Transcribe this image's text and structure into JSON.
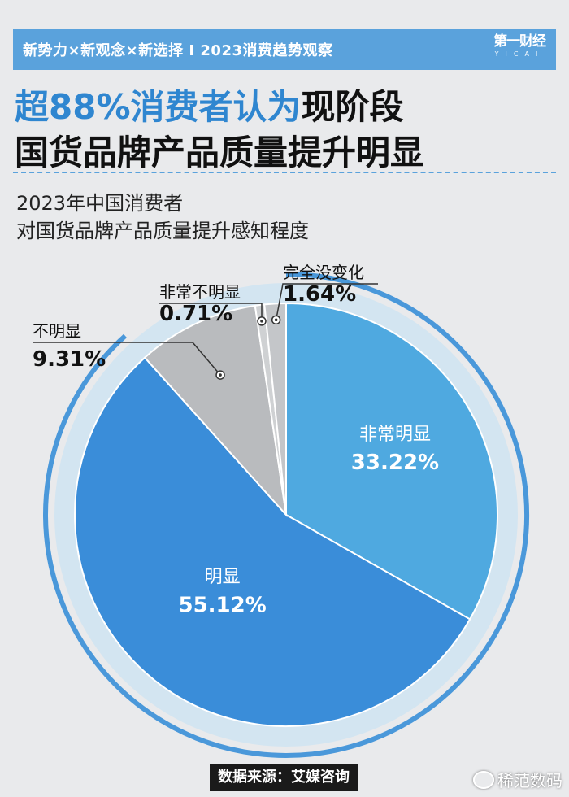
{
  "header": {
    "banner_text": "新势力×新观念×新选择 I 2023消费趋势观察",
    "brand_main": "第一财经",
    "brand_sub": "YICAI",
    "accent_color": "#5aa2dc"
  },
  "headline": {
    "accent": "超88%消费者认为",
    "line1_rest": "现阶段",
    "line2": "国货品牌产品质量提升明显"
  },
  "subtitle": {
    "line1": "2023年中国消费者",
    "line2": "对国货品牌产品质量提升感知程度"
  },
  "chart_data": {
    "type": "pie",
    "title": "2023年中国消费者对国货品牌产品质量提升感知程度",
    "unit": "%",
    "slices": [
      {
        "label": "非常明显",
        "value": 33.22,
        "value_text": "33.22%",
        "color": "#4fa9e0",
        "label_placement": "inside"
      },
      {
        "label": "明显",
        "value": 55.12,
        "value_text": "55.12%",
        "color": "#3a8dd9",
        "label_placement": "inside"
      },
      {
        "label": "不明显",
        "value": 9.31,
        "value_text": "9.31%",
        "color": "#b9bbbe",
        "label_placement": "outside"
      },
      {
        "label": "非常不明显",
        "value": 0.71,
        "value_text": "0.71%",
        "color": "#cfd1d3",
        "label_placement": "outside"
      },
      {
        "label": "完全没变化",
        "value": 1.64,
        "value_text": "1.64%",
        "color": "#c4c6c9",
        "label_placement": "outside"
      }
    ],
    "start_angle": "12 o'clock",
    "direction": "clockwise",
    "ring_color": "#d3e5f1",
    "outer_arc_color": "#4a98da"
  },
  "footer": {
    "source": "数据来源：艾媒咨询",
    "watermark": "稀范数码"
  }
}
